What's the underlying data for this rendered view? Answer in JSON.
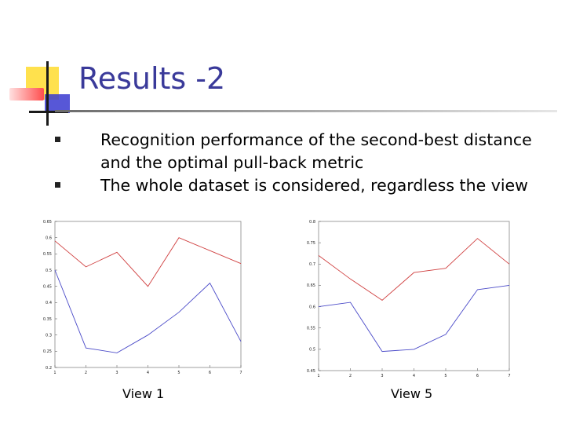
{
  "slide": {
    "title": "Results -2",
    "bullets": [
      "Recognition performance of the second-best distance and the optimal pull-back metric",
      "The whole dataset is considered, regardless the view"
    ]
  },
  "colors": {
    "title": "#3a3a9a",
    "series_red": "#d04040",
    "series_blue": "#4a4ac8",
    "deco_yellow": "#ffe14d",
    "deco_red": "#ff4d4d",
    "deco_blue": "#3a3ad0"
  },
  "chart_data": [
    {
      "type": "line",
      "caption": "View 1",
      "x": [
        1,
        2,
        3,
        4,
        5,
        6,
        7
      ],
      "xticks": [
        "1",
        "2",
        "3",
        "4",
        "5",
        "6",
        "7"
      ],
      "yticks": [
        "0.2",
        "0.25",
        "0.3",
        "0.35",
        "0.4",
        "0.45",
        "0.5",
        "0.55",
        "0.6",
        "0.65"
      ],
      "ylim": [
        0.2,
        0.65
      ],
      "xlim": [
        1,
        7
      ],
      "series": [
        {
          "color": "#d04040",
          "values": [
            0.59,
            0.51,
            0.555,
            0.45,
            0.6,
            0.56,
            0.52
          ]
        },
        {
          "color": "#4a4ac8",
          "values": [
            0.5,
            0.26,
            0.245,
            0.3,
            0.37,
            0.46,
            0.28
          ]
        }
      ]
    },
    {
      "type": "line",
      "caption": "View 5",
      "x": [
        1,
        2,
        3,
        4,
        5,
        6,
        7
      ],
      "xticks": [
        "1",
        "2",
        "3",
        "4",
        "5",
        "6",
        "7"
      ],
      "yticks": [
        "0.45",
        "0.5",
        "0.55",
        "0.6",
        "0.65",
        "0.7",
        "0.75",
        "0.8"
      ],
      "ylim": [
        0.45,
        0.8
      ],
      "xlim": [
        1,
        7
      ],
      "series": [
        {
          "color": "#d04040",
          "values": [
            0.72,
            0.665,
            0.615,
            0.68,
            0.69,
            0.76,
            0.7
          ]
        },
        {
          "color": "#4a4ac8",
          "values": [
            0.6,
            0.61,
            0.495,
            0.5,
            0.535,
            0.64,
            0.65
          ]
        }
      ]
    }
  ]
}
